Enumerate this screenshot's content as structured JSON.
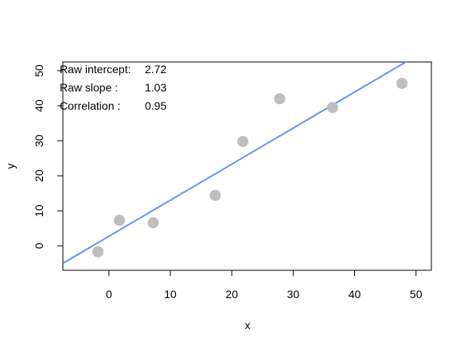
{
  "chart_data": {
    "type": "scatter",
    "title": "",
    "xlabel": "x",
    "ylabel": "y",
    "xlim": [
      -7.5,
      52.5
    ],
    "ylim": [
      -7,
      52.5
    ],
    "x_ticks": [
      0,
      10,
      20,
      30,
      40,
      50
    ],
    "y_ticks": [
      0,
      10,
      20,
      30,
      40,
      50
    ],
    "grid": false,
    "points": [
      {
        "x": -1.8,
        "y": -1.7
      },
      {
        "x": 1.7,
        "y": 7.3
      },
      {
        "x": 7.2,
        "y": 6.6
      },
      {
        "x": 17.3,
        "y": 14.4
      },
      {
        "x": 21.8,
        "y": 29.8
      },
      {
        "x": 27.8,
        "y": 42.0
      },
      {
        "x": 36.4,
        "y": 39.5
      },
      {
        "x": 47.7,
        "y": 46.4
      }
    ],
    "fit_line": {
      "intercept": 2.72,
      "slope": 1.03
    },
    "point_color": "#bebebe",
    "line_color": "#6495ed",
    "annotations": [
      {
        "label": "Raw intercept:",
        "value": "2.72"
      },
      {
        "label": "Raw slope    :",
        "value": "1.03"
      },
      {
        "label": "Correlation  :",
        "value": "0.95"
      }
    ]
  }
}
